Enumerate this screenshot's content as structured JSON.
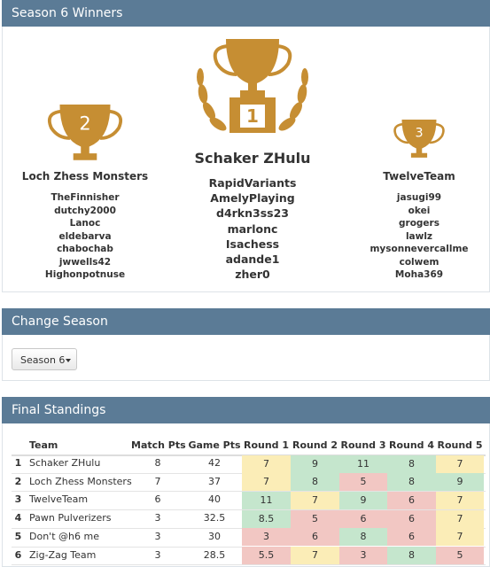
{
  "winners_panel": {
    "title": "Season 6 Winners",
    "first": {
      "rank": "1",
      "team": "Schaker ZHulu",
      "players": [
        "RapidVariants",
        "AmelyPlaying",
        "d4rkn3ss23",
        "marlonc",
        "Isachess",
        "adande1",
        "zher0"
      ]
    },
    "second": {
      "rank": "2",
      "team": "Loch Zhess Monsters",
      "players": [
        "TheFinnisher",
        "dutchy2000",
        "Lanoc",
        "eldebarva",
        "chabochab",
        "jwwells42",
        "Highonpotnuse"
      ]
    },
    "third": {
      "rank": "3",
      "team": "TwelveTeam",
      "players": [
        "jasugi99",
        "okei",
        "grogers",
        "lawlz",
        "mysonnevercallme",
        "colwem",
        "Moha369"
      ]
    }
  },
  "season_panel": {
    "title": "Change Season",
    "button": "Season 6"
  },
  "standings_panel": {
    "title": "Final Standings",
    "table": {
      "columns": [
        "Team",
        "Match Pts",
        "Game Pts",
        "Round 1",
        "Round 2",
        "Round 3",
        "Round 4",
        "Round 5"
      ],
      "rows": [
        {
          "rank": 1,
          "team": "Schaker ZHulu",
          "match_pts": 8,
          "game_pts": 42,
          "rounds": [
            7,
            9,
            11,
            8,
            7
          ],
          "round_colors": [
            "#fbedb7",
            "#c5e6cd",
            "#c5e6cd",
            "#c5e6cd",
            "#fbedb7"
          ]
        },
        {
          "rank": 2,
          "team": "Loch Zhess Monsters",
          "match_pts": 7,
          "game_pts": 37,
          "rounds": [
            7,
            8,
            5,
            8,
            9
          ],
          "round_colors": [
            "#fbedb7",
            "#c5e6cd",
            "#f2c7c3",
            "#c5e6cd",
            "#c5e6cd"
          ]
        },
        {
          "rank": 3,
          "team": "TwelveTeam",
          "match_pts": 6,
          "game_pts": 40,
          "rounds": [
            11,
            7,
            9,
            6,
            7
          ],
          "round_colors": [
            "#c5e6cd",
            "#fbedb7",
            "#c5e6cd",
            "#f2c7c3",
            "#fbedb7"
          ]
        },
        {
          "rank": 4,
          "team": "Pawn Pulverizers",
          "match_pts": 3,
          "game_pts": 32.5,
          "rounds": [
            8.5,
            5,
            6,
            6,
            7
          ],
          "round_colors": [
            "#c5e6cd",
            "#f2c7c3",
            "#f2c7c3",
            "#f2c7c3",
            "#fbedb7"
          ]
        },
        {
          "rank": 5,
          "team": "Don't @h6 me",
          "match_pts": 3,
          "game_pts": 30,
          "rounds": [
            3,
            6,
            8,
            6,
            7
          ],
          "round_colors": [
            "#f2c7c3",
            "#f2c7c3",
            "#c5e6cd",
            "#f2c7c3",
            "#fbedb7"
          ]
        },
        {
          "rank": 6,
          "team": "Zig-Zag Team",
          "match_pts": 3,
          "game_pts": 28.5,
          "rounds": [
            5.5,
            7,
            3,
            8,
            5
          ],
          "round_colors": [
            "#f2c7c3",
            "#fbedb7",
            "#f2c7c3",
            "#c5e6cd",
            "#f2c7c3"
          ]
        }
      ]
    }
  }
}
